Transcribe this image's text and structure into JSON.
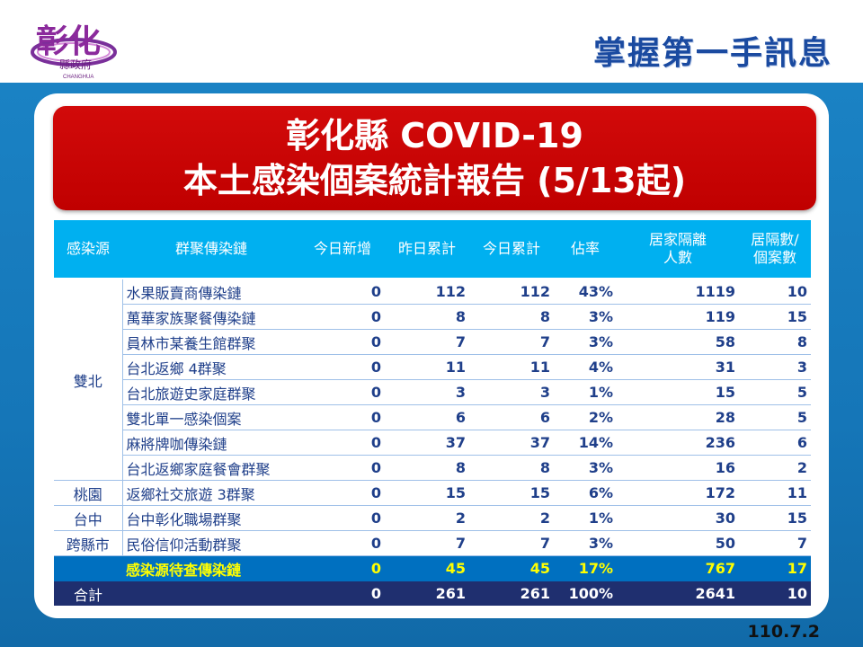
{
  "header": {
    "logo_text": "彰化",
    "logo_sub": "縣政府",
    "logo_en": "CHANGHUA",
    "title": "掌握第一手訊息"
  },
  "banner": {
    "line1": "彰化縣 COVID-19",
    "line2": "本土感染個案統計報告 (5/13起)"
  },
  "table": {
    "headers": {
      "source": "感染源",
      "chain": "群聚傳染鏈",
      "today_new": "今日新增",
      "yesterday_total": "昨日累計",
      "today_total": "今日累計",
      "ratio": "佔率",
      "quarantine_line1": "居家隔離",
      "quarantine_line2": "人數",
      "per_case_line1": "居隔數/",
      "per_case_line2": "個案數"
    },
    "groups": {
      "shuangbei": "雙北",
      "taoyuan": "桃園",
      "taichung": "台中",
      "cross_county": "跨縣市"
    },
    "rows": [
      {
        "chain": "水果販賣商傳染鏈",
        "today_new": "0",
        "yesterday": "112",
        "today": "112",
        "ratio": "43%",
        "quarantine": "1119",
        "per_case": "10"
      },
      {
        "chain": "萬華家族聚餐傳染鏈",
        "today_new": "0",
        "yesterday": "8",
        "today": "8",
        "ratio": "3%",
        "quarantine": "119",
        "per_case": "15"
      },
      {
        "chain": "員林市某養生館群聚",
        "today_new": "0",
        "yesterday": "7",
        "today": "7",
        "ratio": "3%",
        "quarantine": "58",
        "per_case": "8"
      },
      {
        "chain": "台北返鄉 4群聚",
        "today_new": "0",
        "yesterday": "11",
        "today": "11",
        "ratio": "4%",
        "quarantine": "31",
        "per_case": "3"
      },
      {
        "chain": "台北旅遊史家庭群聚",
        "today_new": "0",
        "yesterday": "3",
        "today": "3",
        "ratio": "1%",
        "quarantine": "15",
        "per_case": "5"
      },
      {
        "chain": "雙北單一感染個案",
        "today_new": "0",
        "yesterday": "6",
        "today": "6",
        "ratio": "2%",
        "quarantine": "28",
        "per_case": "5"
      },
      {
        "chain": "麻將牌咖傳染鏈",
        "today_new": "0",
        "yesterday": "37",
        "today": "37",
        "ratio": "14%",
        "quarantine": "236",
        "per_case": "6"
      },
      {
        "chain": "台北返鄉家庭餐會群聚",
        "today_new": "0",
        "yesterday": "8",
        "today": "8",
        "ratio": "3%",
        "quarantine": "16",
        "per_case": "2"
      },
      {
        "chain": "返鄉社交旅遊 3群聚",
        "today_new": "0",
        "yesterday": "15",
        "today": "15",
        "ratio": "6%",
        "quarantine": "172",
        "per_case": "11"
      },
      {
        "chain": "台中彰化職場群聚",
        "today_new": "0",
        "yesterday": "2",
        "today": "2",
        "ratio": "1%",
        "quarantine": "30",
        "per_case": "15"
      },
      {
        "chain": "民俗信仰活動群聚",
        "today_new": "0",
        "yesterday": "7",
        "today": "7",
        "ratio": "3%",
        "quarantine": "50",
        "per_case": "7"
      }
    ],
    "pending": {
      "chain": "感染源待查傳染鏈",
      "today_new": "0",
      "yesterday": "45",
      "today": "45",
      "ratio": "17%",
      "quarantine": "767",
      "per_case": "17"
    },
    "total": {
      "label": "合計",
      "today_new": "0",
      "yesterday": "261",
      "today": "261",
      "ratio": "100%",
      "quarantine": "2641",
      "per_case": "10"
    }
  },
  "footer": {
    "date": "110.7.2"
  },
  "colors": {
    "banner_red": "#c00000",
    "header_cyan": "#00b0f0",
    "pending_blue": "#0070c0",
    "pending_text": "#ffff00",
    "total_navy": "#1f2f6f",
    "background_blue": "#1576b8"
  }
}
